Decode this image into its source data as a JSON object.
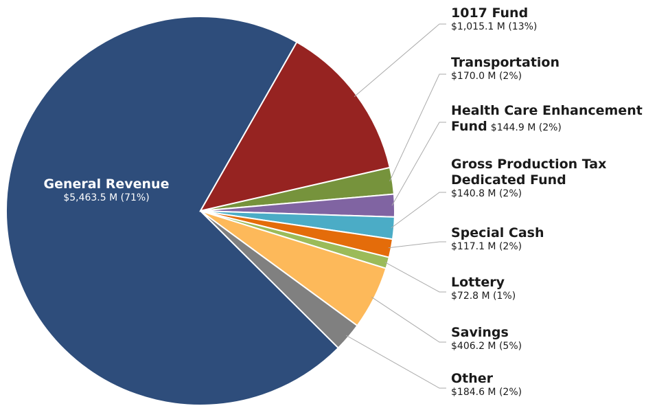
{
  "chart_data": {
    "type": "pie",
    "categories": [
      "General Revenue",
      "1017 Fund",
      "Transportation",
      "Health Care Enhancement Fund",
      "Gross Production Tax Dedicated Fund",
      "Special Cash",
      "Lottery",
      "Savings",
      "Other"
    ],
    "values": [
      5463.5,
      1015.1,
      170.0,
      144.9,
      140.8,
      117.1,
      72.8,
      406.2,
      184.6
    ],
    "value_labels": [
      "$5,463.5 M (71%)",
      "$1,015.1 M (13%)",
      "$170.0 M (2%)",
      "$144.9 M (2%)",
      "$140.8 M (2%)",
      "$117.1 M (2%)",
      "$72.8 M (1%)",
      "$406.2 M (5%)",
      "$184.6 M (2%)"
    ],
    "colors": [
      "#2e4d7b",
      "#962321",
      "#76933c",
      "#8064a2",
      "#4bacc6",
      "#e46c0a",
      "#9bbb59",
      "#fdb95a",
      "#808080"
    ]
  }
}
